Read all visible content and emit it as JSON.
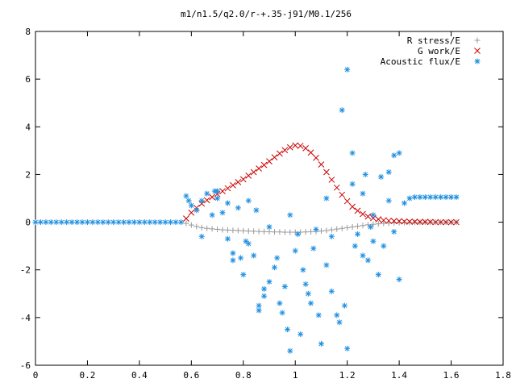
{
  "chart_data": {
    "type": "scatter",
    "title": "m1/n1.5/q2.0/r-+.35-j91/M0.1/256",
    "xlabel": "",
    "ylabel": "",
    "xlim": [
      0,
      1.8
    ],
    "ylim": [
      -6,
      8
    ],
    "xticks": [
      0,
      0.2,
      0.4,
      0.6,
      0.8,
      1,
      1.2,
      1.4,
      1.6,
      1.8
    ],
    "yticks": [
      -6,
      -4,
      -2,
      0,
      2,
      4,
      6,
      8
    ],
    "legend_position": "top-right",
    "grid": false,
    "series": [
      {
        "name": "R stress/E",
        "marker": "plus",
        "color": "#999999",
        "x": [
          0.58,
          0.6,
          0.62,
          0.64,
          0.66,
          0.68,
          0.7,
          0.72,
          0.74,
          0.76,
          0.78,
          0.8,
          0.82,
          0.84,
          0.86,
          0.88,
          0.9,
          0.92,
          0.94,
          0.96,
          0.98,
          1.0,
          1.02,
          1.04,
          1.06,
          1.08,
          1.1,
          1.12,
          1.14,
          1.16,
          1.18,
          1.2,
          1.22,
          1.24,
          1.26,
          1.28,
          1.3,
          1.32,
          1.34,
          1.36,
          1.38,
          1.4,
          1.42,
          1.44,
          1.46,
          1.48,
          1.5,
          1.52,
          1.54,
          1.56,
          1.58,
          1.6,
          1.62
        ],
        "y": [
          -0.05,
          -0.12,
          -0.18,
          -0.23,
          -0.26,
          -0.28,
          -0.3,
          -0.32,
          -0.33,
          -0.34,
          -0.35,
          -0.36,
          -0.37,
          -0.38,
          -0.39,
          -0.4,
          -0.4,
          -0.41,
          -0.41,
          -0.42,
          -0.42,
          -0.42,
          -0.42,
          -0.41,
          -0.4,
          -0.39,
          -0.37,
          -0.35,
          -0.32,
          -0.29,
          -0.26,
          -0.23,
          -0.2,
          -0.17,
          -0.14,
          -0.11,
          -0.09,
          -0.07,
          -0.05,
          -0.04,
          -0.03,
          -0.02,
          -0.02,
          -0.01,
          -0.01,
          -0.01,
          0.0,
          0.0,
          0.0,
          0.0,
          0.0,
          0.0,
          0.0
        ]
      },
      {
        "name": "G work/E",
        "marker": "cross",
        "color": "#cc0000",
        "x": [
          0.58,
          0.6,
          0.62,
          0.64,
          0.66,
          0.68,
          0.7,
          0.72,
          0.74,
          0.76,
          0.78,
          0.8,
          0.82,
          0.84,
          0.86,
          0.88,
          0.9,
          0.92,
          0.94,
          0.96,
          0.98,
          1.0,
          1.02,
          1.04,
          1.06,
          1.08,
          1.1,
          1.12,
          1.14,
          1.16,
          1.18,
          1.2,
          1.22,
          1.24,
          1.26,
          1.28,
          1.3,
          1.32,
          1.34,
          1.36,
          1.38,
          1.4,
          1.42,
          1.44,
          1.46,
          1.48,
          1.5,
          1.52,
          1.54,
          1.56,
          1.58,
          1.6,
          1.62
        ],
        "y": [
          0.15,
          0.4,
          0.6,
          0.78,
          0.92,
          1.05,
          1.18,
          1.3,
          1.42,
          1.55,
          1.68,
          1.8,
          1.95,
          2.1,
          2.25,
          2.4,
          2.55,
          2.72,
          2.88,
          3.02,
          3.14,
          3.22,
          3.2,
          3.1,
          2.92,
          2.7,
          2.42,
          2.1,
          1.78,
          1.45,
          1.15,
          0.88,
          0.65,
          0.48,
          0.34,
          0.24,
          0.17,
          0.12,
          0.08,
          0.06,
          0.05,
          0.04,
          0.03,
          0.02,
          0.02,
          0.01,
          0.01,
          0.01,
          0.0,
          0.0,
          0.0,
          0.0,
          0.0
        ]
      },
      {
        "name": "Acoustic flux/E",
        "marker": "star",
        "color": "#1f8fe0",
        "x": [
          0.0,
          0.02,
          0.04,
          0.06,
          0.08,
          0.1,
          0.12,
          0.14,
          0.16,
          0.18,
          0.2,
          0.22,
          0.24,
          0.26,
          0.28,
          0.3,
          0.32,
          0.34,
          0.36,
          0.38,
          0.4,
          0.42,
          0.44,
          0.46,
          0.48,
          0.5,
          0.52,
          0.54,
          0.56,
          0.58,
          0.59,
          0.6,
          0.62,
          0.64,
          0.66,
          0.68,
          0.7,
          0.72,
          0.74,
          0.76,
          0.78,
          0.8,
          0.82,
          0.84,
          0.86,
          0.88,
          0.9,
          0.92,
          0.94,
          0.96,
          0.98,
          1.0,
          1.02,
          1.04,
          1.06,
          1.08,
          1.1,
          1.12,
          1.14,
          1.16,
          1.18,
          1.2,
          1.22,
          1.24,
          1.26,
          1.28,
          1.3,
          1.32,
          1.34,
          1.36,
          1.38,
          1.4,
          1.42,
          1.44,
          1.46,
          1.48,
          1.5,
          1.52,
          1.54,
          1.56,
          1.58,
          1.6,
          1.62,
          0.64,
          0.7,
          0.74,
          0.79,
          0.82,
          0.86,
          0.9,
          0.95,
          0.98,
          1.03,
          1.07,
          1.12,
          1.17,
          1.2,
          1.23,
          1.27,
          1.3,
          1.33,
          1.38,
          0.69,
          0.76,
          0.81,
          0.85,
          0.88,
          0.93,
          0.97,
          1.01,
          1.05,
          1.09,
          1.14,
          1.19,
          1.22,
          1.26,
          1.29,
          1.36,
          1.4
        ],
        "y": [
          0,
          0,
          0,
          0,
          0,
          0,
          0,
          0,
          0,
          0,
          0,
          0,
          0,
          0,
          0,
          0,
          0,
          0,
          0,
          0,
          0,
          0,
          0,
          0,
          0,
          0,
          0,
          0,
          0,
          1.1,
          0.9,
          0.7,
          0.5,
          0.9,
          1.2,
          0.3,
          1.0,
          0.4,
          0.8,
          -1.3,
          0.6,
          -2.2,
          -0.9,
          -1.4,
          -3.7,
          -2.8,
          -0.2,
          -1.9,
          -3.4,
          -2.7,
          -5.4,
          -1.2,
          -4.7,
          -2.6,
          -3.4,
          -0.3,
          -5.1,
          -1.8,
          -2.9,
          -3.9,
          4.7,
          -5.3,
          2.9,
          -0.5,
          1.2,
          -1.6,
          0.3,
          -2.2,
          -1.0,
          0.9,
          2.8,
          -2.4,
          0.8,
          1.0,
          1.05,
          1.05,
          1.05,
          1.05,
          1.05,
          1.05,
          1.05,
          1.05,
          1.05,
          -0.6,
          1.3,
          -0.7,
          -1.5,
          0.9,
          -3.5,
          -2.5,
          -3.8,
          0.3,
          -2.0,
          -1.1,
          1.0,
          -4.2,
          6.4,
          -1.0,
          2.0,
          -0.8,
          1.9,
          -0.4,
          1.3,
          -1.6,
          -0.8,
          0.5,
          -3.1,
          -1.5,
          -4.5,
          -0.5,
          -3.0,
          -3.9,
          -0.6,
          -3.5,
          1.6,
          -1.4,
          -0.2,
          2.1,
          2.9
        ]
      }
    ]
  }
}
